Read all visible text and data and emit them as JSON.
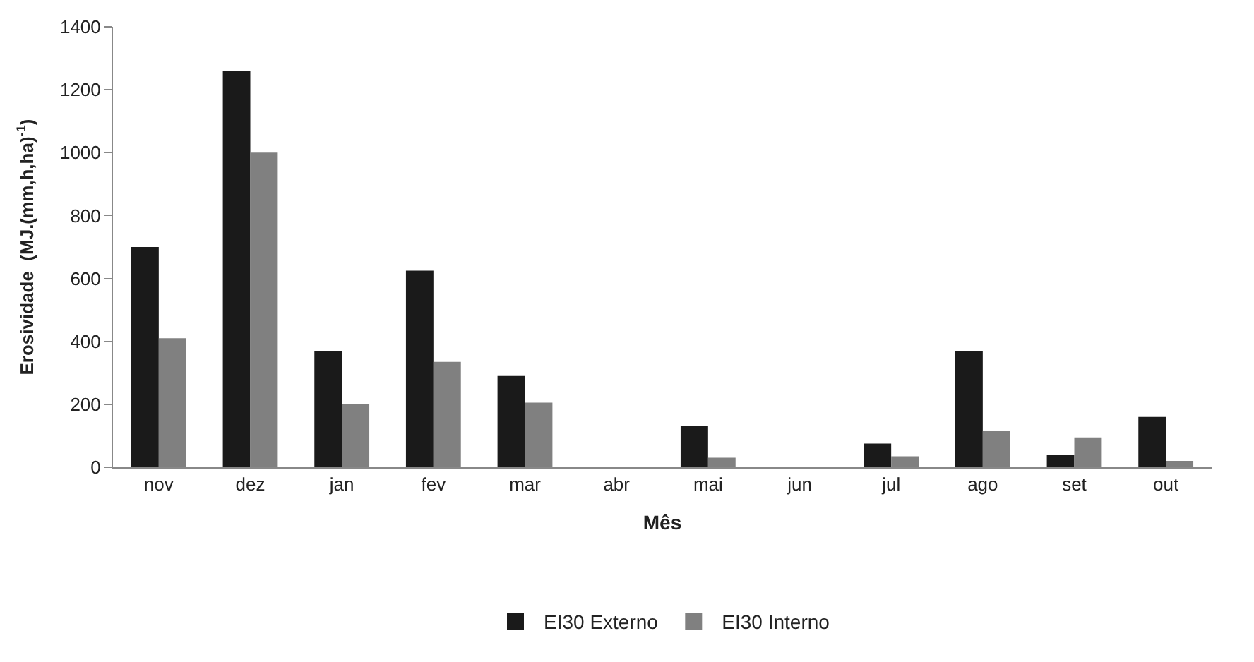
{
  "chart_data": {
    "type": "bar",
    "xlabel": "Mês",
    "ylabel": "Erosividade  (MJ.(mm,h,ha)$^{-1}$)",
    "categories": [
      "nov",
      "dez",
      "jan",
      "fev",
      "mar",
      "abr",
      "mai",
      "jun",
      "jul",
      "ago",
      "set",
      "out"
    ],
    "series": [
      {
        "name": "EI30 Externo",
        "color": "#1a1a1a",
        "values": [
          700,
          1260,
          370,
          625,
          290,
          0,
          130,
          0,
          75,
          370,
          40,
          160
        ]
      },
      {
        "name": "EI30 Interno",
        "color": "#808080",
        "values": [
          410,
          1000,
          200,
          335,
          205,
          0,
          30,
          0,
          35,
          115,
          95,
          20
        ]
      }
    ],
    "ylim": [
      0,
      1400
    ],
    "yticks": [
      0,
      200,
      400,
      600,
      800,
      1000,
      1200,
      1400
    ],
    "legend": "bottom"
  }
}
